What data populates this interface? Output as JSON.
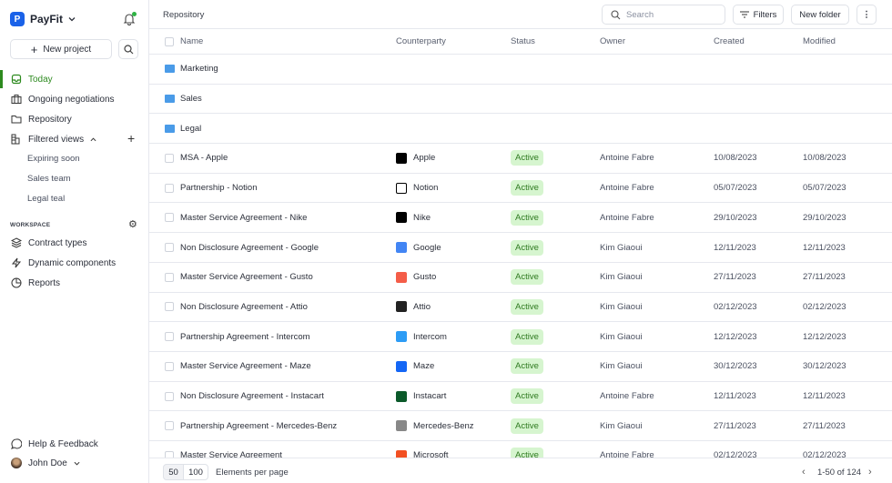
{
  "brand": {
    "name": "PayFit",
    "logo_letter": "P"
  },
  "sidebar": {
    "new_project": "New project",
    "items": [
      {
        "label": "Today",
        "icon": "inbox-icon"
      },
      {
        "label": "Ongoing negotiations",
        "icon": "briefcase-icon"
      },
      {
        "label": "Repository",
        "icon": "folder-icon"
      },
      {
        "label": "Filtered views",
        "icon": "filter-views-icon"
      }
    ],
    "filtered_views": [
      "Expiring soon",
      "Sales team",
      "Legal teal"
    ],
    "workspace_label": "WORKSPACE",
    "workspace_items": [
      {
        "label": "Contract types",
        "icon": "layers-icon"
      },
      {
        "label": "Dynamic components",
        "icon": "bolt-icon"
      },
      {
        "label": "Reports",
        "icon": "pie-chart-icon"
      }
    ],
    "help": "Help & Feedback",
    "user": "John Doe"
  },
  "header": {
    "breadcrumb": "Repository",
    "search_placeholder": "Search",
    "filters": "Filters",
    "new_folder": "New folder"
  },
  "table": {
    "columns": [
      "Name",
      "Counterparty",
      "Status",
      "Owner",
      "Created",
      "Modified"
    ],
    "folders": [
      "Marketing",
      "Sales",
      "Legal"
    ],
    "rows": [
      {
        "name": "MSA - Apple",
        "counterparty": "Apple",
        "status": "Active",
        "owner": "Antoine Fabre",
        "created": "10/08/2023",
        "modified": "10/08/2023",
        "logo_color": "#000000"
      },
      {
        "name": "Partnership - Notion",
        "counterparty": "Notion",
        "status": "Active",
        "owner": "Antoine Fabre",
        "created": "05/07/2023",
        "modified": "05/07/2023",
        "logo_color": "#ffffff"
      },
      {
        "name": "Master Service Agreement - Nike",
        "counterparty": "Nike",
        "status": "Active",
        "owner": "Antoine Fabre",
        "created": "29/10/2023",
        "modified": "29/10/2023",
        "logo_color": "#000000"
      },
      {
        "name": "Non Disclosure Agreement - Google",
        "counterparty": "Google",
        "status": "Active",
        "owner": "Kim Giaoui",
        "created": "12/11/2023",
        "modified": "12/11/2023",
        "logo_color": "#4285f4"
      },
      {
        "name": "Master Service Agreement - Gusto",
        "counterparty": "Gusto",
        "status": "Active",
        "owner": "Kim Giaoui",
        "created": "27/11/2023",
        "modified": "27/11/2023",
        "logo_color": "#f45d48"
      },
      {
        "name": "Non Disclosure Agreement - Attio",
        "counterparty": "Attio",
        "status": "Active",
        "owner": "Kim Giaoui",
        "created": "02/12/2023",
        "modified": "02/12/2023",
        "logo_color": "#222222"
      },
      {
        "name": "Partnership Agreement - Intercom",
        "counterparty": "Intercom",
        "status": "Active",
        "owner": "Kim Giaoui",
        "created": "12/12/2023",
        "modified": "12/12/2023",
        "logo_color": "#2d9cf5"
      },
      {
        "name": "Master Service Agreement - Maze",
        "counterparty": "Maze",
        "status": "Active",
        "owner": "Kim Giaoui",
        "created": "30/12/2023",
        "modified": "30/12/2023",
        "logo_color": "#1466f5"
      },
      {
        "name": "Non Disclosure Agreement - Instacart",
        "counterparty": "Instacart",
        "status": "Active",
        "owner": "Antoine Fabre",
        "created": "12/11/2023",
        "modified": "12/11/2023",
        "logo_color": "#0b5a2a"
      },
      {
        "name": "Partnership Agreement - Mercedes-Benz",
        "counterparty": "Mercedes-Benz",
        "status": "Active",
        "owner": "Kim Giaoui",
        "created": "27/11/2023",
        "modified": "27/11/2023",
        "logo_color": "#888888"
      },
      {
        "name": "Master Service Agreement",
        "counterparty": "Microsoft",
        "status": "Active",
        "owner": "Antoine Fabre",
        "created": "02/12/2023",
        "modified": "02/12/2023",
        "logo_color": "#f25022"
      }
    ]
  },
  "footer": {
    "page_sizes": [
      "50",
      "100"
    ],
    "per_page_label": "Elements per page",
    "range": "1-50 of 124"
  },
  "colors": {
    "accent": "#2d8a1f",
    "brand": "#1a62e8",
    "badge_bg": "#d6f5cf",
    "folder": "#4a9be8"
  }
}
